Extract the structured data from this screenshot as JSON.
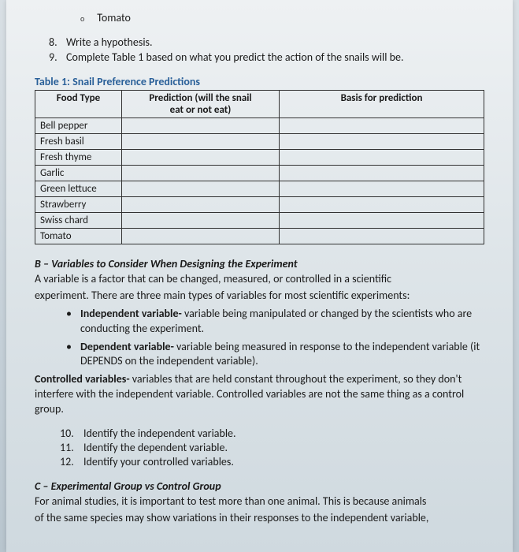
{
  "top_bullet": {
    "marker": "o",
    "label": "Tomato"
  },
  "instructions": [
    {
      "num": "8.",
      "text": "Write a hypothesis."
    },
    {
      "num": "9.",
      "text": "Complete Table 1 based on what you predict the action of the snails will be."
    }
  ],
  "table": {
    "title": "Table 1: Snail Preference Predictions",
    "headers": {
      "food": "Food Type",
      "pred_l1": "Prediction (will the snail",
      "pred_l2": "eat or not eat)",
      "basis": "Basis for prediction"
    },
    "rows": [
      "Bell pepper",
      "Fresh basil",
      "Fresh thyme",
      "Garlic",
      "Green lettuce",
      "Strawberry",
      "Swiss chard",
      "Tomato"
    ]
  },
  "sectionB": {
    "heading": "B – Variables to Consider When Designing the Experiment",
    "intro1": "A variable is a factor that can be changed, measured, or controlled in a scientific",
    "intro2": "experiment. There are three main types of variables for most scientific experiments:",
    "bullets": [
      {
        "term": "Independent variable-",
        "def": " variable being manipulated or changed by the scientists who are conducting the experiment."
      },
      {
        "term": "Dependent variable-",
        "def": " variable being measured in response to the independent variable (it DEPENDS on the independent variable)."
      }
    ],
    "ctrl_term": "Controlled variables-",
    "ctrl_def": " variables that are held constant throughout the experiment, so they don't interfere with the independent variable. Controlled variables are not the same thing as a control group."
  },
  "questions": [
    {
      "num": "10.",
      "text": "Identify the independent variable."
    },
    {
      "num": "11.",
      "text": "Identify the dependent variable."
    },
    {
      "num": "12.",
      "text": "Identify your controlled variables."
    }
  ],
  "sectionC": {
    "heading": "C – Experimental Group vs Control Group",
    "line1": "For animal studies, it is important to test more than one animal. This is because animals",
    "line2": "of the same species may show variations in their responses to the independent variable,"
  }
}
